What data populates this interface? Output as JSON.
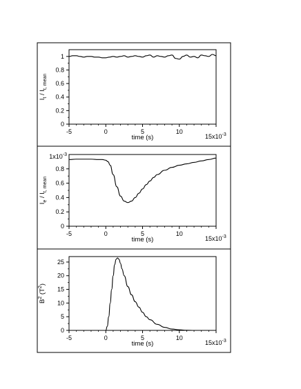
{
  "chart_data": [
    {
      "type": "line",
      "title": "",
      "xlabel": "time (s)",
      "ylabel": {
        "main": "I",
        "main_sub": "t",
        "sep": " / I",
        "sub": "t, mean"
      },
      "x_scale_label": {
        "base": "15x10",
        "exp": "-3"
      },
      "x_ticks": [
        -5,
        0,
        5,
        10
      ],
      "x_tick_labels": [
        "-5",
        "0",
        "5",
        "10"
      ],
      "y_ticks": [
        0,
        0.2,
        0.4,
        0.6,
        0.8,
        1
      ],
      "y_tick_labels": [
        "0",
        "0.2",
        "0.4",
        "0.6",
        "0.8",
        "1"
      ],
      "xlim": [
        -5,
        15
      ],
      "ylim": [
        0,
        1.1
      ],
      "grid": false,
      "series": [
        {
          "x": [
            -5,
            -4.5,
            -4,
            -3.5,
            -3,
            -2.5,
            -2,
            -1.5,
            -1,
            -0.5,
            0,
            0.5,
            1,
            1.5,
            2,
            2.5,
            3,
            3.5,
            4,
            4.5,
            5,
            5.5,
            6,
            6.5,
            7,
            7.5,
            8,
            8.5,
            9,
            9.5,
            10,
            10.5,
            11,
            11.5,
            12,
            12.5,
            13,
            13.5,
            14,
            14.5,
            15
          ],
          "y": [
            1.0,
            1.01,
            1.01,
            1.0,
            0.99,
            1.0,
            1.0,
            0.99,
            0.99,
            0.98,
            0.98,
            0.99,
            1.0,
            0.99,
            1.0,
            1.01,
            0.99,
            1.0,
            1.01,
            1.0,
            0.99,
            1.01,
            1.02,
            0.99,
            1.01,
            1.0,
            0.99,
            1.01,
            1.02,
            0.97,
            0.96,
            1.0,
            1.02,
            0.99,
            1.0,
            0.98,
            1.02,
            1.01,
            1.0,
            1.03,
            1.01
          ]
        }
      ]
    },
    {
      "type": "line",
      "title": "",
      "xlabel": "time (s)",
      "ylabel": {
        "main": "I",
        "main_sub": "e",
        "sep": " / I",
        "sub": "t, mean"
      },
      "x_scale_label": {
        "base": "15x10",
        "exp": "-3"
      },
      "y_scale_label": {
        "base": "1x10",
        "exp": "-3"
      },
      "x_ticks": [
        -5,
        0,
        5,
        10
      ],
      "x_tick_labels": [
        "-5",
        "0",
        "5",
        "10"
      ],
      "y_ticks": [
        0,
        0.2,
        0.4,
        0.6,
        0.8
      ],
      "y_tick_labels": [
        "0",
        "0.2",
        "0.4",
        "0.6",
        "0.8"
      ],
      "xlim": [
        -5,
        15
      ],
      "ylim": [
        0,
        1.0
      ],
      "grid": false,
      "series": [
        {
          "x": [
            -5,
            -4,
            -3,
            -2,
            -1,
            -0.5,
            0,
            0.3,
            0.6,
            1,
            1.5,
            2,
            2.5,
            3,
            3.5,
            4,
            4.5,
            5,
            5.5,
            6,
            6.5,
            7,
            8,
            9,
            10,
            11,
            12,
            13,
            14,
            15
          ],
          "y": [
            0.93,
            0.935,
            0.935,
            0.935,
            0.93,
            0.93,
            0.92,
            0.9,
            0.85,
            0.72,
            0.55,
            0.42,
            0.35,
            0.33,
            0.35,
            0.4,
            0.46,
            0.52,
            0.58,
            0.63,
            0.68,
            0.72,
            0.78,
            0.82,
            0.85,
            0.87,
            0.89,
            0.91,
            0.93,
            0.95
          ]
        }
      ]
    },
    {
      "type": "line",
      "title": "",
      "xlabel": "time (s)",
      "ylabel": {
        "main": "B",
        "sup": "2",
        "units": "(T",
        "units_sup": "2",
        "close": ")"
      },
      "x_scale_label": {
        "base": "15x10",
        "exp": "-3"
      },
      "x_ticks": [
        -5,
        0,
        5,
        10
      ],
      "x_tick_labels": [
        "-5",
        "0",
        "5",
        "10"
      ],
      "y_ticks": [
        0,
        5,
        10,
        15,
        20,
        25
      ],
      "y_tick_labels": [
        "0",
        "5",
        "10",
        "15",
        "20",
        "25"
      ],
      "xlim": [
        -5,
        15
      ],
      "ylim": [
        0,
        27
      ],
      "grid": false,
      "series": [
        {
          "x": [
            -5,
            -1,
            0,
            0.2,
            0.4,
            0.6,
            0.8,
            1.0,
            1.2,
            1.4,
            1.6,
            1.8,
            2.0,
            2.2,
            2.5,
            3.0,
            3.5,
            4,
            4.5,
            5,
            5.5,
            6,
            7,
            8,
            9,
            10,
            11,
            12,
            13,
            14,
            15
          ],
          "y": [
            0,
            0,
            0,
            1.5,
            5,
            10,
            15,
            20,
            24,
            26,
            26.5,
            26,
            24.5,
            22.5,
            20,
            16,
            13,
            10.5,
            8.5,
            6.6,
            5,
            3.9,
            2.2,
            1.1,
            0.5,
            0.2,
            0.05,
            0,
            0,
            0,
            0
          ]
        }
      ]
    }
  ]
}
